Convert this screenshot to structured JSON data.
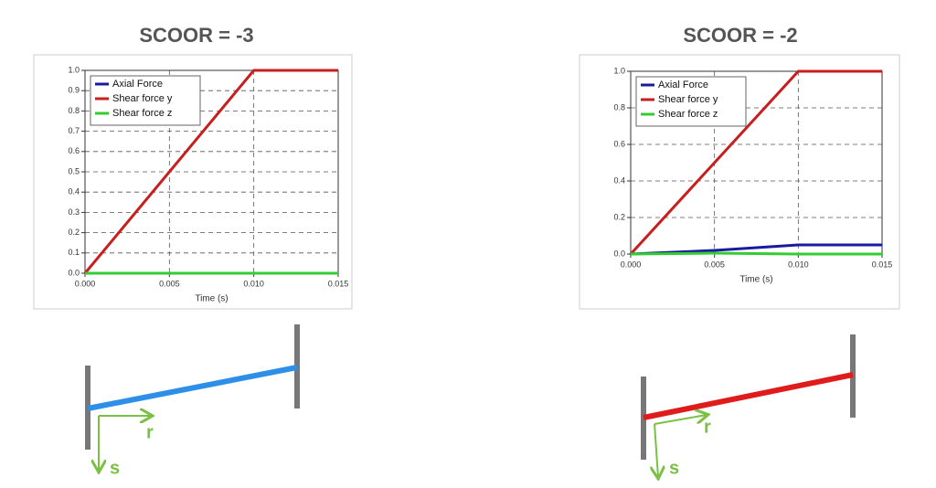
{
  "chart_data": [
    {
      "type": "line",
      "title": "SCOOR = -3",
      "x_label": "Time (s)",
      "x": [
        0,
        0.01,
        0.015
      ],
      "series": [
        {
          "name": "Axial Force",
          "color": "#1a1aa0",
          "values": [
            0,
            0,
            0
          ]
        },
        {
          "name": "Shear force y",
          "color": "#c81e1e",
          "values": [
            0,
            1,
            1
          ]
        },
        {
          "name": "Shear force z",
          "color": "#33cc33",
          "values": [
            0,
            0,
            0
          ]
        }
      ],
      "xlim": [
        0,
        0.015
      ],
      "xticks": [
        {
          "value": 0,
          "label": "0.000"
        },
        {
          "value": 0.005,
          "label": "0.005"
        },
        {
          "value": 0.01,
          "label": "0.010"
        },
        {
          "value": 0.015,
          "label": "0.015"
        }
      ],
      "ylim": [
        0,
        1
      ],
      "yticks": [
        {
          "value": 0,
          "label": "0.0"
        },
        {
          "value": 0.1,
          "label": "0.1"
        },
        {
          "value": 0.2,
          "label": "0.2"
        },
        {
          "value": 0.3,
          "label": "0.3"
        },
        {
          "value": 0.4,
          "label": "0.4"
        },
        {
          "value": 0.5,
          "label": "0.5"
        },
        {
          "value": 0.6,
          "label": "0.6"
        },
        {
          "value": 0.7,
          "label": "0.7"
        },
        {
          "value": 0.8,
          "label": "0.8"
        },
        {
          "value": 0.9,
          "label": "0.9"
        },
        {
          "value": 1,
          "label": "1.0"
        }
      ],
      "grid": true,
      "legend": "upper-left"
    },
    {
      "type": "line",
      "title": "SCOOR = -2",
      "x_label": "Time (s)",
      "x": [
        0,
        0.005,
        0.01,
        0.015
      ],
      "series": [
        {
          "name": "Axial Force",
          "color": "#1a1aa0",
          "values": [
            0,
            0.02,
            0.05,
            0.05
          ]
        },
        {
          "name": "Shear force y",
          "color": "#c81e1e",
          "values": [
            0,
            0.5,
            1,
            1
          ]
        },
        {
          "name": "Shear force z",
          "color": "#33cc33",
          "values": [
            0,
            0.005,
            0,
            0
          ]
        }
      ],
      "xlim": [
        0,
        0.015
      ],
      "xticks": [
        {
          "value": 0,
          "label": "0.000"
        },
        {
          "value": 0.005,
          "label": "0.005"
        },
        {
          "value": 0.01,
          "label": "0.010"
        },
        {
          "value": 0.015,
          "label": "0.015"
        }
      ],
      "ylim": [
        0,
        1
      ],
      "yticks": [
        {
          "value": 0,
          "label": "0.0"
        },
        {
          "value": 0.2,
          "label": "0.2"
        },
        {
          "value": 0.4,
          "label": "0.4"
        },
        {
          "value": 0.6,
          "label": "0.6"
        },
        {
          "value": 0.8,
          "label": "0.8"
        },
        {
          "value": 1,
          "label": "1.0"
        }
      ],
      "grid": true,
      "legend": "upper-left"
    }
  ],
  "diagrams": [
    {
      "r_label": "r",
      "s_label": "s"
    },
    {
      "r_label": "r",
      "s_label": "s"
    }
  ]
}
